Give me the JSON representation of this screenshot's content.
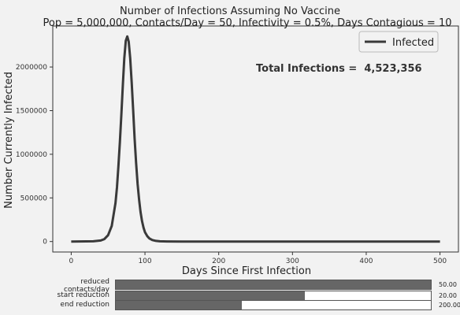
{
  "chart_data": {
    "type": "line",
    "title_line1": "Number of Infections Assuming No Vaccine",
    "title_line2": "Pop = 5,000,000, Contacts/Day = 50, Infectivity = 0.5%, Days Contagious = 10",
    "xlabel": "Days Since First Infection",
    "ylabel": "Number Currently Infected",
    "xlim": [
      -25,
      525
    ],
    "ylim": [
      -120000,
      2470000
    ],
    "xticks": [
      0,
      100,
      200,
      300,
      400,
      500
    ],
    "yticks": [
      0,
      500000,
      1000000,
      1500000,
      2000000
    ],
    "ytick_labels": [
      "0",
      "500000",
      "1000000",
      "1500000",
      "2000000"
    ],
    "grid": false,
    "legend_position": "top-right",
    "annotation": "Total Infections =  4,523,356",
    "series": [
      {
        "name": "Infected",
        "color": "#3a3a3a",
        "x": [
          0,
          30,
          40,
          45,
          50,
          55,
          60,
          62,
          64,
          66,
          68,
          70,
          72,
          74,
          76,
          78,
          80,
          82,
          84,
          86,
          88,
          90,
          92,
          94,
          96,
          98,
          100,
          103,
          106,
          110,
          115,
          120,
          130,
          150,
          200,
          300,
          400,
          500
        ],
        "y": [
          0,
          3000,
          12000,
          28000,
          72000,
          180000,
          440000,
          620000,
          860000,
          1140000,
          1460000,
          1800000,
          2100000,
          2300000,
          2350000,
          2290000,
          2100000,
          1820000,
          1500000,
          1180000,
          900000,
          660000,
          480000,
          340000,
          235000,
          160000,
          108000,
          62000,
          35000,
          17000,
          7000,
          3000,
          800,
          60,
          0,
          0,
          0,
          0
        ]
      }
    ]
  },
  "sliders": [
    {
      "label_line1": "reduced",
      "label_line2": "contacts/day",
      "value": 50,
      "value_text": "50.00",
      "min": 0,
      "max": 50
    },
    {
      "label_line1": "start reduction",
      "label_line2": "",
      "value": 20,
      "value_text": "20.00",
      "min": 0,
      "max": 33.33
    },
    {
      "label_line1": "end reduction",
      "label_line2": "",
      "value": 200,
      "value_text": "200.00",
      "min": 0,
      "max": 500
    }
  ]
}
